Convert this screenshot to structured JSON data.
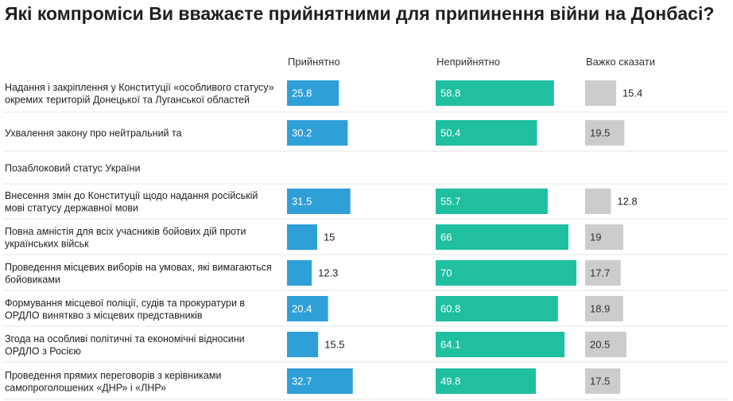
{
  "chart_data": {
    "type": "bar",
    "title": "Які компроміси Ви вважаєте прийнятними для припинення війни на Донбасі?",
    "columns": [
      "Прийнятно",
      "Неприйнятно",
      "Важко сказати"
    ],
    "colors": {
      "Прийнятно": "#2f9fd8",
      "Неприйнятно": "#1fbf9f",
      "Важко сказати": "#cccccc"
    },
    "rows": [
      {
        "label": "Надання і закріплення у Конституції «особливого статусу» окремих територій Донецької та Луганської областей",
        "values": [
          25.8,
          58.8,
          15.4
        ]
      },
      {
        "label": "Ухвалення закону про нейтральний та",
        "values": [
          30.2,
          50.4,
          19.5
        ]
      },
      {
        "label": "Позаблоковий статус України",
        "values": [
          null,
          null,
          null
        ]
      },
      {
        "label": "Внесення змін до Конституції щодо надання російській мові статусу державної мови",
        "values": [
          31.5,
          55.7,
          12.8
        ]
      },
      {
        "label": "Повна амністія для всіх учасників бойових дій проти українських військ",
        "values": [
          15,
          66,
          19
        ]
      },
      {
        "label": "Проведення місцевих виборів на умовах, які вимагаються бойовиками",
        "values": [
          12.3,
          70,
          17.7
        ]
      },
      {
        "label": "Формування місцевої поліції, судів та прокуратури в ОРДЛО виняткво з місцевих представників",
        "values": [
          20.4,
          60.8,
          18.9
        ]
      },
      {
        "label": "Згода на особливі політичні та економічні відносини ОРДЛО з Росією",
        "values": [
          15.5,
          64.1,
          20.5
        ]
      },
      {
        "label": "Проведення прямих переговорів з керівниками самопроголошених «ДНР» і «ЛНР»",
        "values": [
          32.7,
          49.8,
          17.5
        ]
      }
    ]
  }
}
